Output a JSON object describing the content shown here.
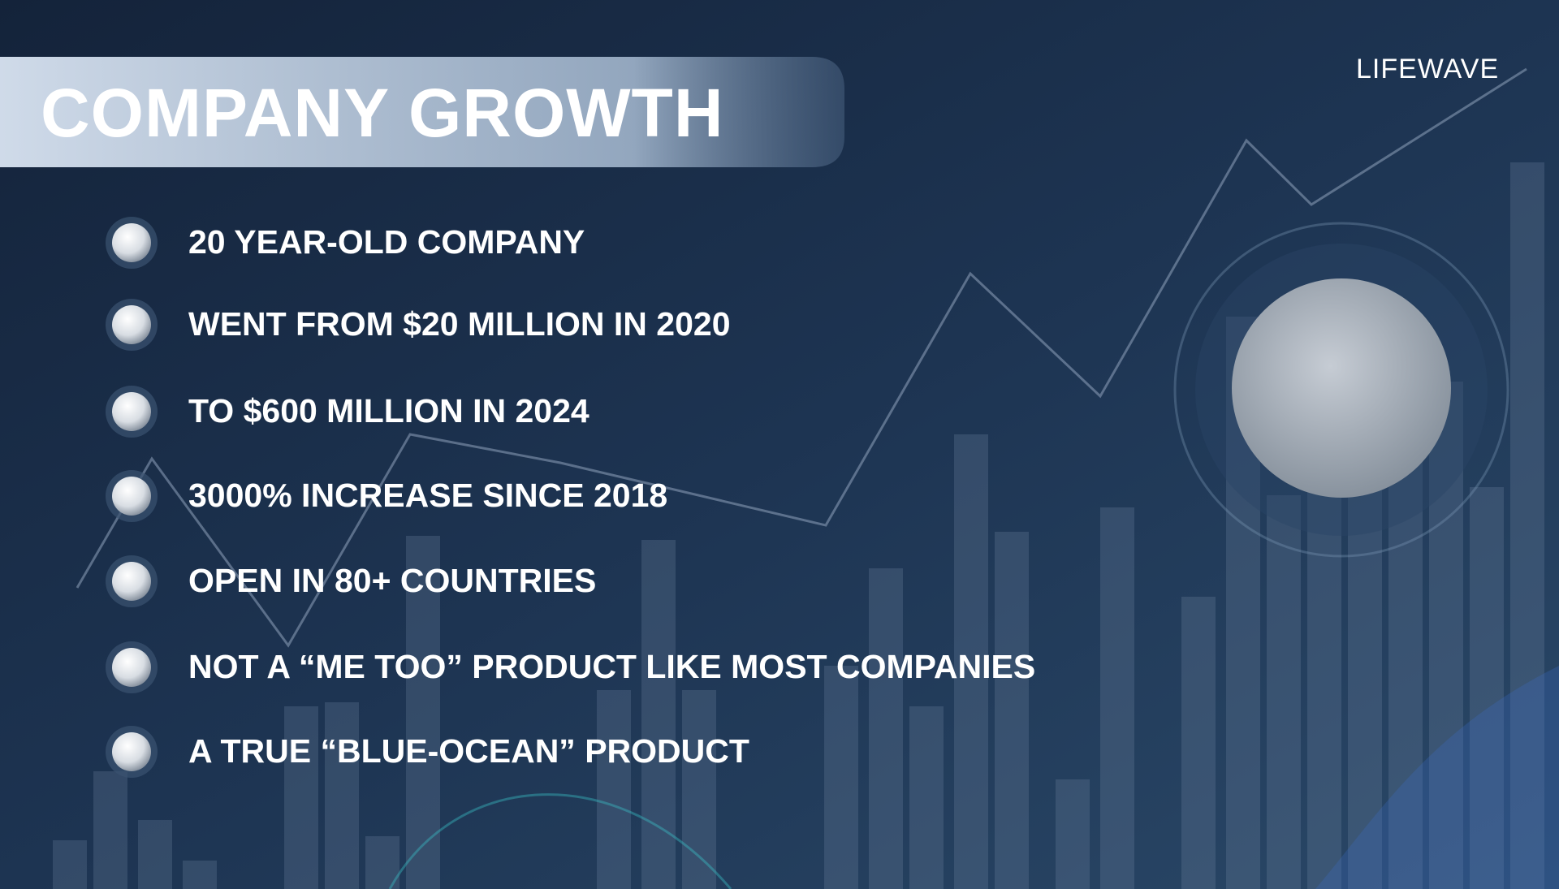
{
  "header": {
    "title": "COMPANY GROWTH",
    "logo": "LIFEWAVE"
  },
  "bullets": [
    "20 YEAR-OLD COMPANY",
    "WENT FROM $20 MILLION IN 2020",
    "TO $600 MILLION IN 2024",
    "3000% INCREASE SINCE 2018",
    "OPEN IN 80+ COUNTRIES",
    "NOT A “ME TOO” PRODUCT LIKE MOST COMPANIES",
    "A TRUE “BLUE-OCEAN” PRODUCT"
  ]
}
